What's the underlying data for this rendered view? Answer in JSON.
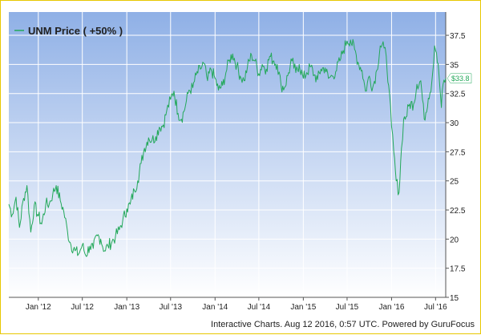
{
  "chart_data": {
    "type": "line",
    "title": "",
    "legend": {
      "label": "UNM Price ( +50% )",
      "placement": "top-left"
    },
    "xlabel": "",
    "ylabel": "",
    "x_ticks": [
      "Jan '12",
      "Jul '12",
      "Jan '13",
      "Jul '13",
      "Jan '14",
      "Jul '14",
      "Jan '15",
      "Jul '15",
      "Jan '16",
      "Jul '16"
    ],
    "y_ticks": [
      "15",
      "17.5",
      "20",
      "22.5",
      "25",
      "27.5",
      "30",
      "32.5",
      "35",
      "37.5"
    ],
    "ylim": [
      15,
      39.5
    ],
    "xlim": [
      "2011-09-01",
      "2016-08-12"
    ],
    "grid": true,
    "y_axis_side": "right",
    "current_price_label": "$33.8",
    "credit": "Interactive Charts. Aug 12 2016, 0:57 UTC. Powered by GuruFocus",
    "colors": {
      "line": "#23a85a",
      "background_top": "#8fb0e6",
      "background_bottom": "#ffffff",
      "frame": "#e8c800"
    },
    "series": [
      {
        "name": "UNM Price ( +50% )",
        "x": [
          "2011-09-01",
          "2011-09-15",
          "2011-10-01",
          "2011-10-15",
          "2011-11-01",
          "2011-11-15",
          "2011-12-01",
          "2011-12-15",
          "2012-01-01",
          "2012-01-15",
          "2012-02-01",
          "2012-02-15",
          "2012-03-01",
          "2012-03-15",
          "2012-04-01",
          "2012-04-15",
          "2012-05-01",
          "2012-05-15",
          "2012-06-01",
          "2012-06-15",
          "2012-07-01",
          "2012-07-15",
          "2012-08-01",
          "2012-08-15",
          "2012-09-01",
          "2012-09-15",
          "2012-10-01",
          "2012-10-15",
          "2012-11-01",
          "2012-11-15",
          "2012-12-01",
          "2012-12-15",
          "2013-01-01",
          "2013-01-15",
          "2013-02-01",
          "2013-02-15",
          "2013-03-01",
          "2013-03-15",
          "2013-04-01",
          "2013-04-15",
          "2013-05-01",
          "2013-05-15",
          "2013-06-01",
          "2013-06-15",
          "2013-07-01",
          "2013-07-15",
          "2013-08-01",
          "2013-08-15",
          "2013-09-01",
          "2013-09-15",
          "2013-10-01",
          "2013-10-15",
          "2013-11-01",
          "2013-11-15",
          "2013-12-01",
          "2013-12-15",
          "2014-01-01",
          "2014-01-15",
          "2014-02-01",
          "2014-02-15",
          "2014-03-01",
          "2014-03-15",
          "2014-04-01",
          "2014-04-15",
          "2014-05-01",
          "2014-05-15",
          "2014-06-01",
          "2014-06-15",
          "2014-07-01",
          "2014-07-15",
          "2014-08-01",
          "2014-08-15",
          "2014-09-01",
          "2014-09-15",
          "2014-10-01",
          "2014-10-15",
          "2014-11-01",
          "2014-11-15",
          "2014-12-01",
          "2014-12-15",
          "2015-01-01",
          "2015-01-15",
          "2015-02-01",
          "2015-02-15",
          "2015-03-01",
          "2015-03-15",
          "2015-04-01",
          "2015-04-15",
          "2015-05-01",
          "2015-05-15",
          "2015-06-01",
          "2015-06-15",
          "2015-07-01",
          "2015-07-15",
          "2015-08-01",
          "2015-08-15",
          "2015-09-01",
          "2015-09-15",
          "2015-10-01",
          "2015-10-15",
          "2015-11-01",
          "2015-11-15",
          "2015-12-01",
          "2015-12-10",
          "2015-12-20",
          "2016-01-01",
          "2016-01-10",
          "2016-01-20",
          "2016-02-01",
          "2016-02-11",
          "2016-02-20",
          "2016-03-01",
          "2016-03-15",
          "2016-04-01",
          "2016-04-15",
          "2016-05-01",
          "2016-05-15",
          "2016-06-01",
          "2016-06-15",
          "2016-06-27",
          "2016-07-05",
          "2016-07-15",
          "2016-07-25",
          "2016-08-01",
          "2016-08-12"
        ],
        "values": [
          23.0,
          22.1,
          23.6,
          21.0,
          23.5,
          24.6,
          20.6,
          22.9,
          22.0,
          21.3,
          23.0,
          23.0,
          23.9,
          24.6,
          23.3,
          22.4,
          20.6,
          19.5,
          19.0,
          18.7,
          19.5,
          18.6,
          19.4,
          19.2,
          20.3,
          20.0,
          19.0,
          19.4,
          19.8,
          20.2,
          20.8,
          21.6,
          22.6,
          23.0,
          24.2,
          25.0,
          26.5,
          27.8,
          28.7,
          28.5,
          28.8,
          29.6,
          29.8,
          31.0,
          32.0,
          32.7,
          30.8,
          30.3,
          31.5,
          32.8,
          33.0,
          34.1,
          34.6,
          35.1,
          33.6,
          34.6,
          33.8,
          32.8,
          33.2,
          34.3,
          35.4,
          35.9,
          34.9,
          34.0,
          33.6,
          34.8,
          35.8,
          35.3,
          34.2,
          35.0,
          34.6,
          35.7,
          35.3,
          35.0,
          33.2,
          33.0,
          34.3,
          35.3,
          34.3,
          35.0,
          33.8,
          34.3,
          34.8,
          34.1,
          33.7,
          34.6,
          34.7,
          33.8,
          34.0,
          34.4,
          35.3,
          36.2,
          37.0,
          37.1,
          36.3,
          35.2,
          34.5,
          32.7,
          34.0,
          33.0,
          34.5,
          36.6,
          36.4,
          35.7,
          33.2,
          29.7,
          27.5,
          25.0,
          24.0,
          27.8,
          30.3,
          30.5,
          31.6,
          31.6,
          33.3,
          33.6,
          30.3,
          32.1,
          33.4,
          36.6,
          36.0,
          34.1,
          31.3,
          33.3,
          33.8
        ]
      }
    ]
  }
}
